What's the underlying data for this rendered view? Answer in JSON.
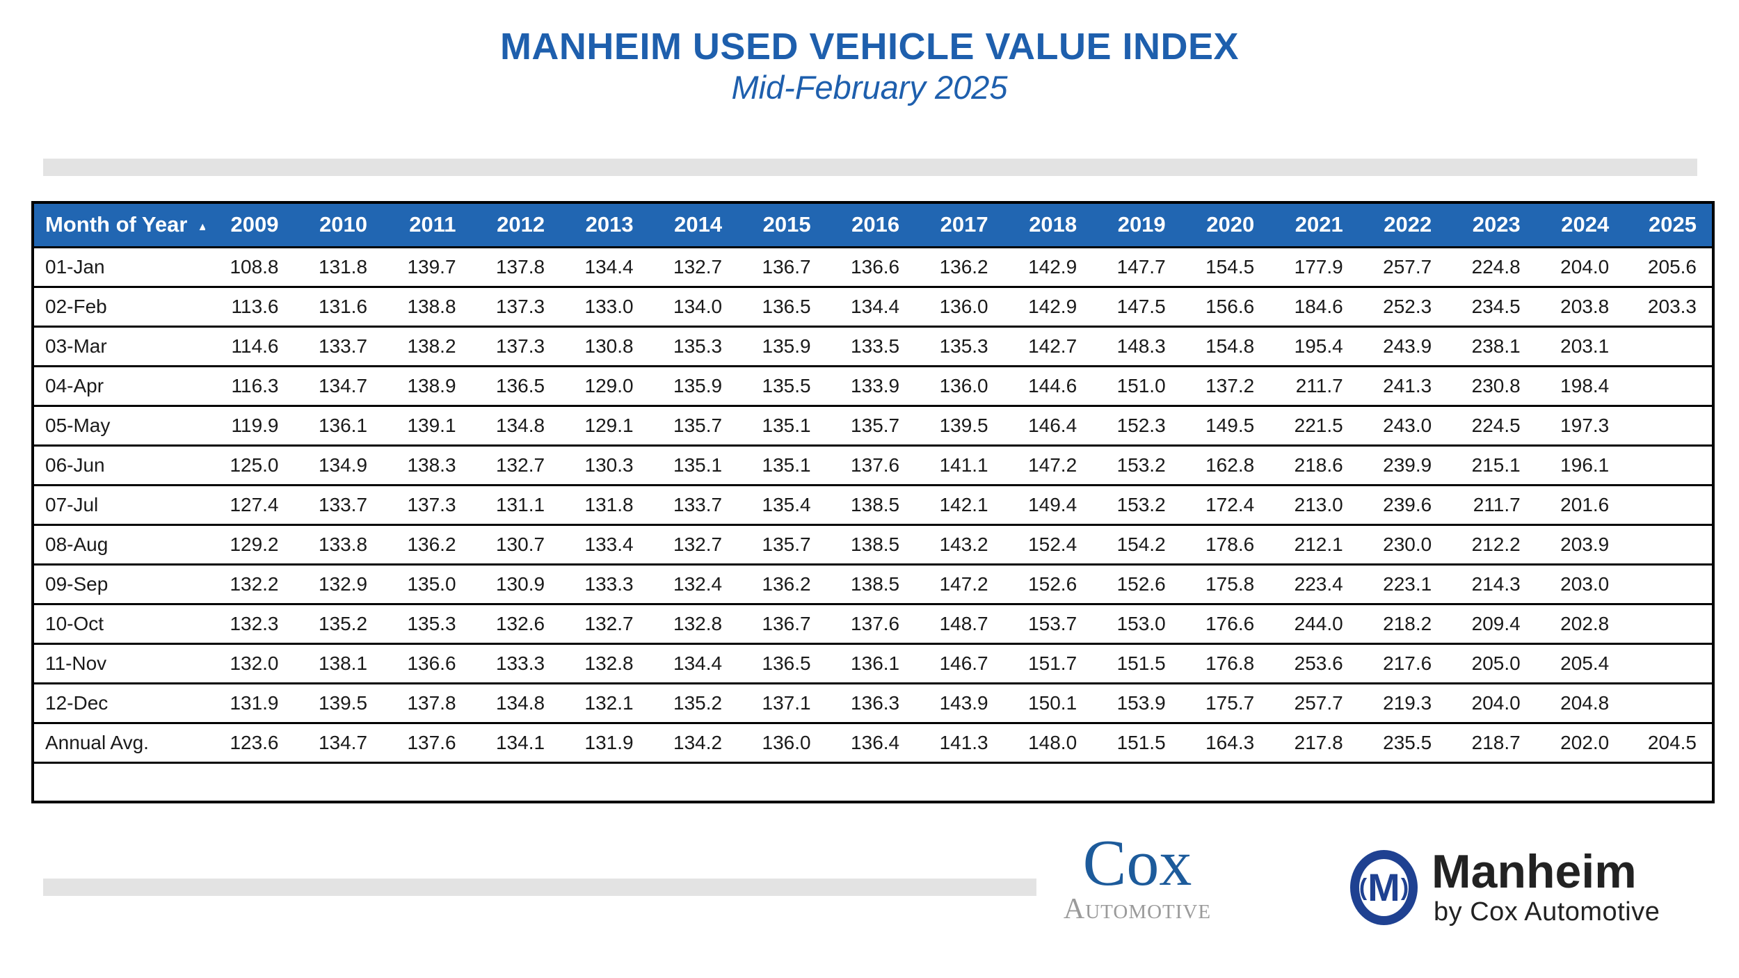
{
  "title": "MANHEIM USED VEHICLE VALUE INDEX",
  "subtitle": "Mid-February 2025",
  "sort_indicator": "▲",
  "chart_data": {
    "type": "table",
    "title": "MANHEIM USED VEHICLE VALUE INDEX",
    "subtitle": "Mid-February 2025",
    "row_header": "Month of Year",
    "columns": [
      "2009",
      "2010",
      "2011",
      "2012",
      "2013",
      "2014",
      "2015",
      "2016",
      "2017",
      "2018",
      "2019",
      "2020",
      "2021",
      "2022",
      "2023",
      "2024",
      "2025"
    ],
    "rows": [
      {
        "label": "01-Jan",
        "values": [
          "108.8",
          "131.8",
          "139.7",
          "137.8",
          "134.4",
          "132.7",
          "136.7",
          "136.6",
          "136.2",
          "142.9",
          "147.7",
          "154.5",
          "177.9",
          "257.7",
          "224.8",
          "204.0",
          "205.6"
        ]
      },
      {
        "label": "02-Feb",
        "values": [
          "113.6",
          "131.6",
          "138.8",
          "137.3",
          "133.0",
          "134.0",
          "136.5",
          "134.4",
          "136.0",
          "142.9",
          "147.5",
          "156.6",
          "184.6",
          "252.3",
          "234.5",
          "203.8",
          "203.3"
        ]
      },
      {
        "label": "03-Mar",
        "values": [
          "114.6",
          "133.7",
          "138.2",
          "137.3",
          "130.8",
          "135.3",
          "135.9",
          "133.5",
          "135.3",
          "142.7",
          "148.3",
          "154.8",
          "195.4",
          "243.9",
          "238.1",
          "203.1",
          ""
        ]
      },
      {
        "label": "04-Apr",
        "values": [
          "116.3",
          "134.7",
          "138.9",
          "136.5",
          "129.0",
          "135.9",
          "135.5",
          "133.9",
          "136.0",
          "144.6",
          "151.0",
          "137.2",
          "211.7",
          "241.3",
          "230.8",
          "198.4",
          ""
        ]
      },
      {
        "label": "05-May",
        "values": [
          "119.9",
          "136.1",
          "139.1",
          "134.8",
          "129.1",
          "135.7",
          "135.1",
          "135.7",
          "139.5",
          "146.4",
          "152.3",
          "149.5",
          "221.5",
          "243.0",
          "224.5",
          "197.3",
          ""
        ]
      },
      {
        "label": "06-Jun",
        "values": [
          "125.0",
          "134.9",
          "138.3",
          "132.7",
          "130.3",
          "135.1",
          "135.1",
          "137.6",
          "141.1",
          "147.2",
          "153.2",
          "162.8",
          "218.6",
          "239.9",
          "215.1",
          "196.1",
          ""
        ]
      },
      {
        "label": "07-Jul",
        "values": [
          "127.4",
          "133.7",
          "137.3",
          "131.1",
          "131.8",
          "133.7",
          "135.4",
          "138.5",
          "142.1",
          "149.4",
          "153.2",
          "172.4",
          "213.0",
          "239.6",
          "211.7",
          "201.6",
          ""
        ]
      },
      {
        "label": "08-Aug",
        "values": [
          "129.2",
          "133.8",
          "136.2",
          "130.7",
          "133.4",
          "132.7",
          "135.7",
          "138.5",
          "143.2",
          "152.4",
          "154.2",
          "178.6",
          "212.1",
          "230.0",
          "212.2",
          "203.9",
          ""
        ]
      },
      {
        "label": "09-Sep",
        "values": [
          "132.2",
          "132.9",
          "135.0",
          "130.9",
          "133.3",
          "132.4",
          "136.2",
          "138.5",
          "147.2",
          "152.6",
          "152.6",
          "175.8",
          "223.4",
          "223.1",
          "214.3",
          "203.0",
          ""
        ]
      },
      {
        "label": "10-Oct",
        "values": [
          "132.3",
          "135.2",
          "135.3",
          "132.6",
          "132.7",
          "132.8",
          "136.7",
          "137.6",
          "148.7",
          "153.7",
          "153.0",
          "176.6",
          "244.0",
          "218.2",
          "209.4",
          "202.8",
          ""
        ]
      },
      {
        "label": "11-Nov",
        "values": [
          "132.0",
          "138.1",
          "136.6",
          "133.3",
          "132.8",
          "134.4",
          "136.5",
          "136.1",
          "146.7",
          "151.7",
          "151.5",
          "176.8",
          "253.6",
          "217.6",
          "205.0",
          "205.4",
          ""
        ]
      },
      {
        "label": "12-Dec",
        "values": [
          "131.9",
          "139.5",
          "137.8",
          "134.8",
          "132.1",
          "135.2",
          "137.1",
          "136.3",
          "143.9",
          "150.1",
          "153.9",
          "175.7",
          "257.7",
          "219.3",
          "204.0",
          "204.8",
          ""
        ]
      },
      {
        "label": "Annual Avg.",
        "values": [
          "123.6",
          "134.7",
          "137.6",
          "134.1",
          "131.9",
          "134.2",
          "136.0",
          "136.4",
          "141.3",
          "148.0",
          "151.5",
          "164.3",
          "217.8",
          "235.5",
          "218.7",
          "202.0",
          "204.5"
        ]
      }
    ]
  },
  "footer": {
    "cox_logo": {
      "line1": "Cox",
      "line2": "Automotive"
    },
    "manheim_logo": {
      "left_paren": "(",
      "monogram": "M",
      "right_paren": ")",
      "name": "Manheim",
      "tagline": "by Cox Automotive"
    }
  },
  "colors": {
    "title_blue": "#1e5fad",
    "header_blue": "#2166b2",
    "divider_gray": "#e3e3e3",
    "cox_blue": "#1d5b9b",
    "cox_gray": "#9a9a9a",
    "manheim_navy": "#1f4191",
    "table_border": "#000000"
  }
}
